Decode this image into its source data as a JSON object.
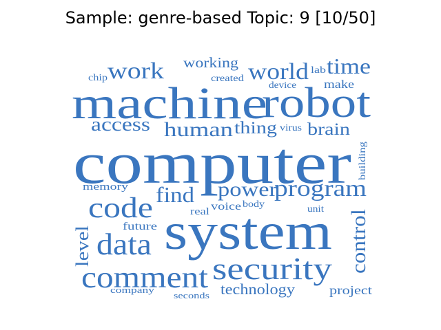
{
  "title": "Sample: genre-based Topic: 9 [10/50]",
  "colors": {
    "word": "#3a76bf",
    "title": "#000000",
    "background": "#ffffff"
  },
  "words": {
    "computer": "computer",
    "machine": "machine",
    "system": "system",
    "robot": "robot",
    "security": "security",
    "comment": "comment",
    "code": "code",
    "data": "data",
    "program": "program",
    "work": "work",
    "world": "world",
    "time": "time",
    "human": "human",
    "find": "find",
    "power": "power",
    "control": "control",
    "access": "access",
    "thing": "thing",
    "brain": "brain",
    "level": "level",
    "working": "working",
    "technology": "technology",
    "project": "project",
    "future": "future",
    "voice": "voice",
    "memory": "memory",
    "make": "make",
    "chip": "chip",
    "created": "created",
    "lab": "lab",
    "device": "device",
    "virus": "virus",
    "building": "building",
    "real": "real",
    "body": "body",
    "unit": "unit",
    "company": "company",
    "seconds": "seconds"
  }
}
